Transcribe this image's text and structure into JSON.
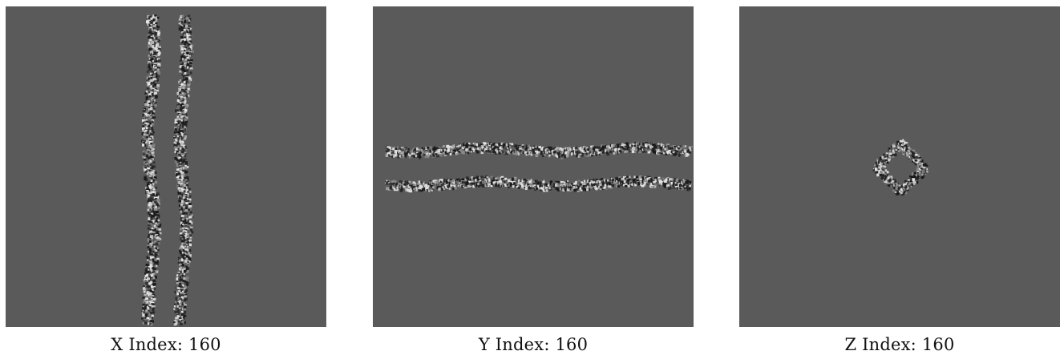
{
  "panels": [
    {
      "id": "x",
      "caption": "X Index: 160"
    },
    {
      "id": "y",
      "caption": "Y Index: 160"
    },
    {
      "id": "z",
      "caption": "Z Index: 160"
    }
  ],
  "colors": {
    "background": "#5a5a5a",
    "speckle_light": "#e6e6e6",
    "speckle_dark": "#1a1a1a"
  }
}
